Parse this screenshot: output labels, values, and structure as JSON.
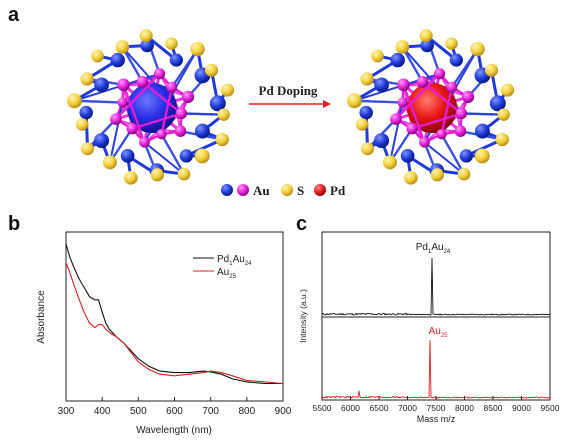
{
  "panels": {
    "a": "a",
    "b": "b",
    "c": "c"
  },
  "panel_a": {
    "arrow_label": "Pd Doping",
    "legend": [
      {
        "label": "Au",
        "colors": [
          "#1f3ad8",
          "#e61ed8"
        ]
      },
      {
        "label": "S",
        "colors": [
          "#f2cf3a"
        ]
      },
      {
        "label": "Pd",
        "colors": [
          "#e3191c"
        ]
      }
    ],
    "colors": {
      "au_core": "#2a2ee6",
      "pd_core": "#e81414",
      "au_blue": "#1f3ad8",
      "au_magenta": "#e61ed8",
      "sulfur": "#f2cf3a",
      "arrow": "#e02020"
    }
  },
  "chart_data": [
    {
      "type": "line",
      "panel": "b",
      "xlabel": "Wavelength (nm)",
      "ylabel": "Absorbance",
      "xlim": [
        300,
        900
      ],
      "x_ticks": [
        "300",
        "400",
        "500",
        "600",
        "700",
        "800",
        "900"
      ],
      "y_ticks": [],
      "legend_position": "top-right",
      "series": [
        {
          "name": "Pd1Au24",
          "name_base": "Pd",
          "name_sub1": "1",
          "name_mid": "Au",
          "name_sub2": "24",
          "color": "#111111",
          "x": [
            300,
            310,
            320,
            335,
            350,
            365,
            380,
            390,
            400,
            410,
            420,
            440,
            460,
            480,
            500,
            530,
            560,
            600,
            640,
            680,
            700,
            730,
            760,
            800,
            850,
            900
          ],
          "y": [
            1.0,
            0.92,
            0.86,
            0.78,
            0.72,
            0.66,
            0.64,
            0.64,
            0.56,
            0.49,
            0.45,
            0.4,
            0.36,
            0.31,
            0.26,
            0.21,
            0.18,
            0.17,
            0.17,
            0.18,
            0.175,
            0.16,
            0.13,
            0.11,
            0.1,
            0.1
          ]
        },
        {
          "name": "Au25",
          "name_base": "Au",
          "name_sub1": "25",
          "name_mid": "",
          "name_sub2": "",
          "color": "#d42020",
          "x": [
            300,
            310,
            320,
            335,
            350,
            365,
            380,
            390,
            400,
            410,
            420,
            440,
            460,
            480,
            500,
            530,
            560,
            600,
            640,
            680,
            700,
            730,
            760,
            800,
            850,
            900
          ],
          "y": [
            0.88,
            0.82,
            0.75,
            0.65,
            0.56,
            0.49,
            0.46,
            0.48,
            0.48,
            0.45,
            0.43,
            0.4,
            0.36,
            0.3,
            0.24,
            0.19,
            0.16,
            0.15,
            0.16,
            0.17,
            0.18,
            0.17,
            0.15,
            0.12,
            0.11,
            0.1
          ]
        }
      ]
    },
    {
      "type": "line",
      "panel": "c",
      "xlabel": "Mass m/z",
      "ylabel": "Intensity (a.u.)",
      "xlim": [
        5500,
        9500
      ],
      "x_ticks": [
        "5500",
        "6000",
        "6500",
        "7000",
        "7500",
        "8000",
        "8500",
        "9000",
        "9500"
      ],
      "y_ticks": [],
      "series": [
        {
          "name": "Pd1Au24",
          "name_base": "Pd",
          "name_sub1": "1",
          "name_mid": "Au",
          "name_sub2": "24",
          "color": "#111111",
          "peak_x": 7432,
          "peak_height": 1.0,
          "secondary_peaks": []
        },
        {
          "name": "Au25",
          "name_base": "Au",
          "name_sub1": "25",
          "name_mid": "",
          "name_sub2": "",
          "color": "#d42020",
          "peak_x": 7393,
          "peak_height": 1.0,
          "secondary_peaks": [
            {
              "x": 6150,
              "height": 0.12
            }
          ]
        }
      ]
    }
  ]
}
